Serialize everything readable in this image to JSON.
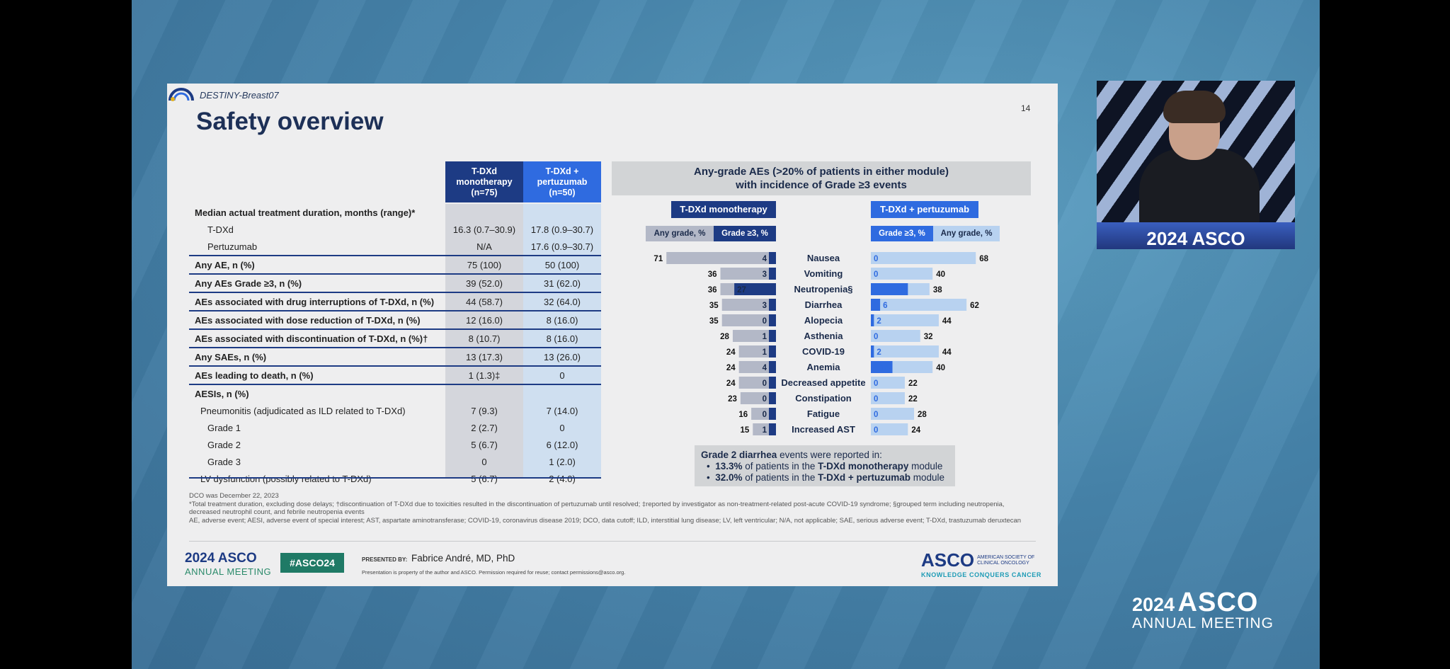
{
  "slide": {
    "study": "DESTINY-Breast07",
    "title": "Safety overview",
    "page_number": "14"
  },
  "table": {
    "col1_header": "T-DXd\nmonotherapy\n(n=75)",
    "col2_header": "T-DXd +\npertuzumab\n(n=50)",
    "rows": [
      {
        "label": "Median actual treatment duration, months (range)*",
        "v1": "",
        "v2": "",
        "bold": true,
        "indent": 0,
        "line": false
      },
      {
        "label": "T-DXd",
        "v1": "16.3 (0.7–30.9)",
        "v2": "17.8 (0.9–30.7)",
        "bold": false,
        "indent": 1,
        "line": false
      },
      {
        "label": "Pertuzumab",
        "v1": "N/A",
        "v2": "17.6 (0.9–30.7)",
        "bold": false,
        "indent": 1,
        "line": false
      },
      {
        "label": "Any AE, n (%)",
        "v1": "75 (100)",
        "v2": "50 (100)",
        "bold": true,
        "indent": 0,
        "line": true
      },
      {
        "label": "Any AEs Grade ≥3, n (%)",
        "v1": "39 (52.0)",
        "v2": "31 (62.0)",
        "bold": true,
        "indent": 0,
        "line": true
      },
      {
        "label": "AEs associated with drug interruptions of T-DXd, n (%)",
        "v1": "44 (58.7)",
        "v2": "32 (64.0)",
        "bold": true,
        "indent": 0,
        "line": true
      },
      {
        "label": "AEs associated with dose reduction of T-DXd, n (%)",
        "v1": "12 (16.0)",
        "v2": "8 (16.0)",
        "bold": true,
        "indent": 0,
        "line": true
      },
      {
        "label": "AEs associated with discontinuation of T-DXd, n (%)†",
        "v1": "8 (10.7)",
        "v2": "8 (16.0)",
        "bold": true,
        "indent": 0,
        "line": true
      },
      {
        "label": "Any SAEs, n (%)",
        "v1": "13 (17.3)",
        "v2": "13 (26.0)",
        "bold": true,
        "indent": 0,
        "line": true
      },
      {
        "label": "AEs leading to death, n (%)",
        "v1": "1 (1.3)‡",
        "v2": "0",
        "bold": true,
        "indent": 0,
        "line": true
      },
      {
        "label": "AESIs, n (%)",
        "v1": "",
        "v2": "",
        "bold": true,
        "indent": 0,
        "line": true
      },
      {
        "label": "Pneumonitis (adjudicated as ILD related to T-DXd)",
        "v1": "7 (9.3)",
        "v2": "7 (14.0)",
        "bold": false,
        "indent": 2,
        "line": false
      },
      {
        "label": "Grade 1",
        "v1": "2 (2.7)",
        "v2": "0",
        "bold": false,
        "indent": 3,
        "line": false
      },
      {
        "label": "Grade 2",
        "v1": "5 (6.7)",
        "v2": "6 (12.0)",
        "bold": false,
        "indent": 3,
        "line": false
      },
      {
        "label": "Grade 3",
        "v1": "0",
        "v2": "1 (2.0)",
        "bold": false,
        "indent": 3,
        "line": false
      },
      {
        "label": "LV dysfunction (possibly related to T-DXd)",
        "v1": "5 (6.7)",
        "v2": "2 (4.0)",
        "bold": false,
        "indent": 2,
        "line": false
      }
    ]
  },
  "chart_data": {
    "type": "bar",
    "title": "Any-grade AEs (>20% of patients in either module)\nwith incidence of Grade ≥3 events",
    "orientation": "horizontal-butterfly",
    "categories": [
      "Nausea",
      "Vomiting",
      "Neutropenia§",
      "Diarrhea",
      "Alopecia",
      "Asthenia",
      "COVID-19",
      "Anemia",
      "Decreased appetite",
      "Constipation",
      "Fatigue",
      "Increased AST"
    ],
    "modules": [
      {
        "name": "T-DXd monotherapy",
        "side": "left",
        "color_any": "#b3b8c7",
        "color_g3": "#1d3b84",
        "legend_any": "Any grade, %",
        "legend_g3": "Grade ≥3, %",
        "any_grade": [
          71,
          36,
          36,
          35,
          35,
          28,
          24,
          24,
          24,
          23,
          16,
          15
        ],
        "grade3": [
          4,
          3,
          27,
          3,
          0,
          1,
          1,
          4,
          0,
          0,
          0,
          1
        ]
      },
      {
        "name": "T-DXd + pertuzumab",
        "side": "right",
        "color_any": "#b8d2f0",
        "color_g3": "#2f6be0",
        "legend_any": "Any grade, %",
        "legend_g3": "Grade ≥3, %",
        "any_grade": [
          68,
          40,
          38,
          62,
          44,
          32,
          44,
          40,
          22,
          22,
          28,
          24
        ],
        "grade3": [
          0,
          0,
          24,
          6,
          2,
          0,
          2,
          14,
          0,
          0,
          0,
          0
        ]
      }
    ]
  },
  "callout": {
    "line1_bold": "Grade 2 diarrhea",
    "line1_rest": " events were reported in:",
    "b1_bold": "13.3%",
    "b1_mid": " of patients in the ",
    "b1_mod": "T-DXd monotherapy",
    "b1_end": " module",
    "b2_bold": "32.0%",
    "b2_mid": " of patients in the ",
    "b2_mod": "T-DXd + pertuzumab",
    "b2_end": " module"
  },
  "footnotes": {
    "dco": "DCO was December 22, 2023",
    "notes": "*Total treatment duration, excluding dose delays; †discontinuation of T-DXd due to toxicities resulted in the discontinuation of pertuzumab until resolved; ‡reported by investigator as non-treatment-related post-acute COVID-19 syndrome; §grouped term including neutropenia, decreased neutrophil count, and febrile neutropenia events",
    "abbrev": "AE, adverse event; AESI, adverse event of special interest; AST, aspartate aminotransferase; COVID-19, coronavirus disease 2019; DCO, data cutoff; ILD, interstitial lung disease; LV, left ventricular; N/A, not applicable; SAE, serious adverse event; T-DXd, trastuzumab deruxtecan"
  },
  "footer": {
    "meeting_year": "2024",
    "meeting_org": "ASCO",
    "meeting_sub": "ANNUAL MEETING",
    "hashtag": "#ASCO24",
    "presented_by": "PRESENTED BY:",
    "presenter": "Fabrice André, MD, PhD",
    "legal": "Presentation is property of the author and ASCO. Permission required for reuse; contact permissions@asco.org.",
    "asco_logo": "ASCO",
    "asco_full_1": "AMERICAN SOCIETY OF",
    "asco_full_2": "CLINICAL ONCOLOGY",
    "asco_tagline": "KNOWLEDGE CONQUERS CANCER"
  },
  "speaker_view": {
    "podium_text": "2024 ASCO"
  },
  "broadcast_logo": {
    "year": "2024",
    "org": "ASCO",
    "sub": "ANNUAL MEETING"
  }
}
